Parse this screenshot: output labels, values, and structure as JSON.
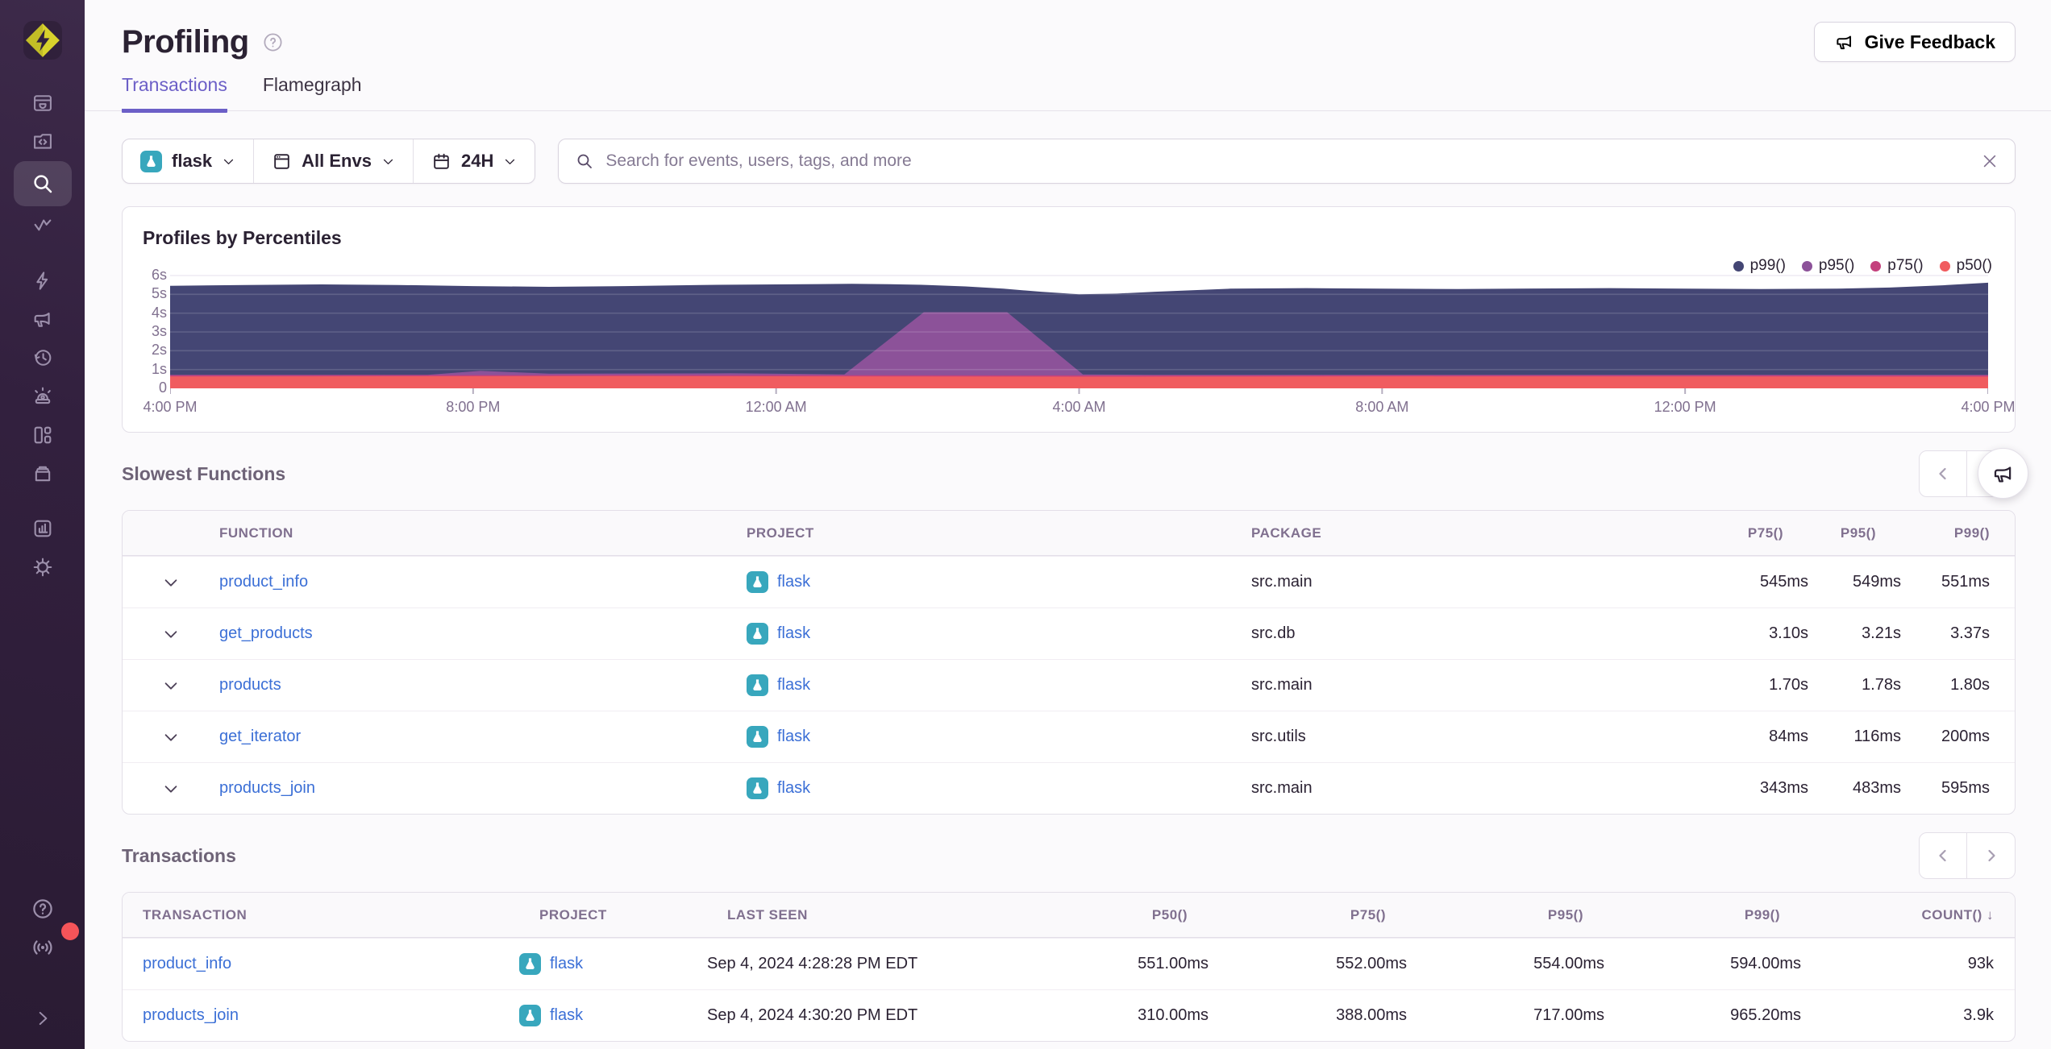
{
  "header": {
    "title": "Profiling",
    "feedback_label": "Give Feedback"
  },
  "tabs": [
    {
      "label": "Transactions",
      "active": true
    },
    {
      "label": "Flamegraph",
      "active": false
    }
  ],
  "filters": {
    "project": {
      "label": "flask"
    },
    "environment": {
      "label": "All Envs"
    },
    "period": {
      "label": "24H"
    },
    "search_placeholder": "Search for events, users, tags, and more"
  },
  "sidebar": {
    "icons": [
      "issues-icon",
      "projects-icon",
      "explore-search-icon",
      "traces-icon",
      "quickstart-icon",
      "user-feedback-icon",
      "replays-icon",
      "alerts-icon",
      "dashboards-icon",
      "releases-icon",
      "stats-icon",
      "settings-icon"
    ],
    "bottom_icons": [
      "help-icon",
      "whats-new-icon",
      "collapse-icon"
    ],
    "active_item": "explore-search-icon"
  },
  "chart_data": {
    "type": "area",
    "title": "Profiles by Percentiles",
    "unit": "seconds",
    "ylim": [
      0,
      6
    ],
    "x_span_hours": 24,
    "grid": true,
    "legend_position": "top-right",
    "y_tick_labels": [
      "6s",
      "5s",
      "4s",
      "3s",
      "2s",
      "1s",
      "0"
    ],
    "x_tick_labels": [
      "4:00 PM",
      "8:00 PM",
      "12:00 AM",
      "4:00 AM",
      "8:00 AM",
      "12:00 PM",
      "4:00 PM"
    ],
    "series": [
      {
        "label": "p99()",
        "color": "#444674",
        "x": [
          0,
          1,
          2,
          3,
          4,
          5,
          6,
          7,
          8,
          9,
          9.5,
          10,
          10.5,
          11,
          11.5,
          12,
          12.5,
          13,
          14,
          15,
          16,
          17,
          18,
          19,
          20,
          21,
          22,
          22.7,
          23.4,
          24
        ],
        "values": [
          5.45,
          5.5,
          5.53,
          5.5,
          5.44,
          5.4,
          5.44,
          5.5,
          5.53,
          5.56,
          5.54,
          5.5,
          5.42,
          5.3,
          5.14,
          5.0,
          5.04,
          5.14,
          5.3,
          5.33,
          5.3,
          5.28,
          5.31,
          5.33,
          5.3,
          5.28,
          5.3,
          5.36,
          5.48,
          5.62
        ]
      },
      {
        "label": "p95()",
        "color": "#8c5299",
        "x": [
          0,
          3.4,
          4.1,
          5,
          7.4,
          8.9,
          9.95,
          11.05,
          12.05,
          13,
          24
        ],
        "values": [
          0.72,
          0.72,
          0.93,
          0.78,
          0.8,
          0.74,
          4.05,
          4.05,
          0.74,
          0.72,
          0.72
        ]
      },
      {
        "label": "p75()",
        "color": "#c4417d",
        "x": [
          0,
          6,
          12,
          18,
          24
        ],
        "values": [
          0.7,
          0.71,
          0.69,
          0.7,
          0.69
        ]
      },
      {
        "label": "p50()",
        "color": "#f05c5f",
        "x": [
          0,
          6,
          12,
          18,
          24
        ],
        "values": [
          0.63,
          0.65,
          0.62,
          0.64,
          0.62
        ]
      }
    ]
  },
  "slowest_functions": {
    "title": "Slowest Functions",
    "columns": [
      {
        "label": "",
        "align": "left"
      },
      {
        "label": "Function",
        "align": "left"
      },
      {
        "label": "Project",
        "align": "left"
      },
      {
        "label": "Package",
        "align": "left"
      },
      {
        "label": "P75()",
        "align": "right"
      },
      {
        "label": "P95()",
        "align": "right"
      },
      {
        "label": "P99()",
        "align": "right"
      }
    ],
    "rows": [
      {
        "function": "product_info",
        "project": "flask",
        "package": "src.main",
        "p75": "545ms",
        "p95": "549ms",
        "p99": "551ms"
      },
      {
        "function": "get_products",
        "project": "flask",
        "package": "src.db",
        "p75": "3.10s",
        "p95": "3.21s",
        "p99": "3.37s"
      },
      {
        "function": "products",
        "project": "flask",
        "package": "src.main",
        "p75": "1.70s",
        "p95": "1.78s",
        "p99": "1.80s"
      },
      {
        "function": "get_iterator",
        "project": "flask",
        "package": "src.utils",
        "p75": "84ms",
        "p95": "116ms",
        "p99": "200ms"
      },
      {
        "function": "products_join",
        "project": "flask",
        "package": "src.main",
        "p75": "343ms",
        "p95": "483ms",
        "p99": "595ms"
      }
    ]
  },
  "transactions": {
    "title": "Transactions",
    "columns": [
      {
        "label": "Transaction",
        "align": "left"
      },
      {
        "label": "Project",
        "align": "left"
      },
      {
        "label": "Last Seen",
        "align": "left"
      },
      {
        "label": "P50()",
        "align": "right"
      },
      {
        "label": "P75()",
        "align": "right"
      },
      {
        "label": "P95()",
        "align": "right"
      },
      {
        "label": "P99()",
        "align": "right"
      },
      {
        "label": "Count() ↓",
        "align": "right"
      }
    ],
    "rows": [
      {
        "transaction": "product_info",
        "project": "flask",
        "last_seen": "Sep 4, 2024 4:28:28 PM EDT",
        "p50": "551.00ms",
        "p75": "552.00ms",
        "p95": "554.00ms",
        "p99": "594.00ms",
        "count": "93k"
      },
      {
        "transaction": "products_join",
        "project": "flask",
        "last_seen": "Sep 4, 2024 4:30:20 PM EDT",
        "p50": "310.00ms",
        "p75": "388.00ms",
        "p95": "717.00ms",
        "p99": "965.20ms",
        "count": "3.9k"
      }
    ]
  }
}
